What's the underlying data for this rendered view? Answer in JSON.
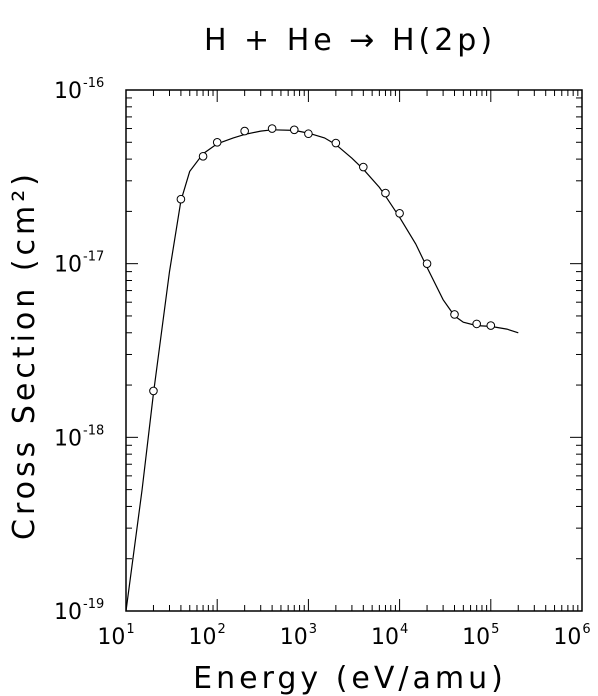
{
  "chart_data": {
    "type": "line",
    "title": "H + He → H(2p)",
    "xlabel": "Energy (eV/amu)",
    "ylabel": "Cross Section (cm²)",
    "xscale": "log",
    "yscale": "log",
    "xlim": [
      10,
      1000000
    ],
    "ylim": [
      1e-19,
      1e-16
    ],
    "grid": false,
    "x_ticks": [
      {
        "base": "10",
        "exp": "1",
        "value": 10
      },
      {
        "base": "10",
        "exp": "2",
        "value": 100
      },
      {
        "base": "10",
        "exp": "3",
        "value": 1000
      },
      {
        "base": "10",
        "exp": "4",
        "value": 10000
      },
      {
        "base": "10",
        "exp": "5",
        "value": 100000
      },
      {
        "base": "10",
        "exp": "6",
        "value": 1000000
      }
    ],
    "y_ticks": [
      {
        "base": "10",
        "exp": "-19",
        "value": 1e-19
      },
      {
        "base": "10",
        "exp": "-18",
        "value": 1e-18
      },
      {
        "base": "10",
        "exp": "-17",
        "value": 1e-17
      },
      {
        "base": "10",
        "exp": "-16",
        "value": 1e-16
      }
    ],
    "series": [
      {
        "style": "line",
        "x": [
          10,
          15,
          20,
          30,
          40,
          50,
          70,
          100,
          150,
          200,
          300,
          400,
          700,
          1000,
          1500,
          2000,
          3000,
          4000,
          6000,
          7000,
          10000,
          15000,
          20000,
          30000,
          40000,
          50000,
          70000,
          100000,
          150000,
          200000
        ],
        "y": [
          1e-19,
          5e-19,
          1.8e-18,
          9e-18,
          2.3e-17,
          3.4e-17,
          4.3e-17,
          4.9e-17,
          5.3e-17,
          5.55e-17,
          5.8e-17,
          5.9e-17,
          5.85e-17,
          5.65e-17,
          5.3e-17,
          4.85e-17,
          4.05e-17,
          3.5e-17,
          2.75e-17,
          2.45e-17,
          1.85e-17,
          1.3e-17,
          9.5e-18,
          6.2e-18,
          5e-18,
          4.6e-18,
          4.4e-18,
          4.35e-18,
          4.2e-18,
          4e-18
        ]
      },
      {
        "style": "markers",
        "marker": "open-circle",
        "x": [
          20,
          40,
          70,
          100,
          200,
          400,
          700,
          1000,
          2000,
          4000,
          7000,
          10000,
          20000,
          40000,
          70000,
          100000
        ],
        "y": [
          1.85e-18,
          2.35e-17,
          4.15e-17,
          5e-17,
          5.8e-17,
          6e-17,
          5.9e-17,
          5.6e-17,
          4.95e-17,
          3.6e-17,
          2.55e-17,
          1.95e-17,
          1e-17,
          5.1e-18,
          4.5e-18,
          4.4e-18
        ]
      }
    ]
  }
}
